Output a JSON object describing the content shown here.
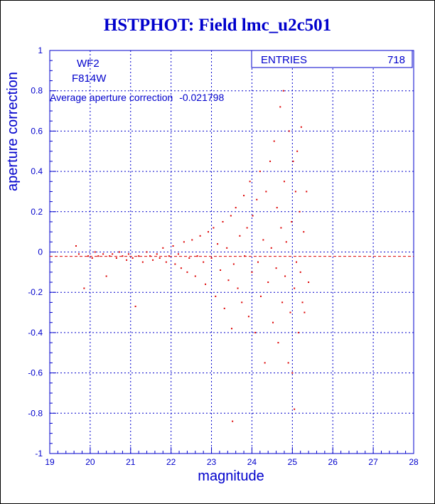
{
  "colors": {
    "axis": "#0000cc",
    "grid": "#0000cc",
    "points": "#dd0000",
    "mean_line": "#dd0000",
    "title": "#0000cc",
    "text": "#0000cc"
  },
  "stats_box": {
    "label": "ENTRIES",
    "value": "718"
  },
  "info_labels": {
    "camera": "WF2",
    "filter": "F814W",
    "average_label": "Average aperture correction",
    "average_value": "-0.021798"
  },
  "chart_data": {
    "type": "scatter",
    "title": "HSTPHOT: Field lmc_u2c501",
    "xlabel": "magnitude",
    "ylabel": "aperture correction",
    "xlim": [
      19,
      28
    ],
    "ylim": [
      -1,
      1
    ],
    "x_ticks": [
      19,
      20,
      21,
      22,
      23,
      24,
      25,
      26,
      27,
      28
    ],
    "y_ticks": [
      -1,
      -0.8,
      -0.6,
      -0.4,
      -0.2,
      0,
      0.2,
      0.4,
      0.6,
      0.8,
      1
    ],
    "grid": true,
    "reference_line_y": -0.021798,
    "series": [
      {
        "points": [
          [
            19.65,
            0.03
          ],
          [
            19.72,
            -0.01
          ],
          [
            19.85,
            -0.18
          ],
          [
            19.95,
            -0.02
          ],
          [
            20.05,
            -0.03
          ],
          [
            20.12,
            0.0
          ],
          [
            20.2,
            -0.02
          ],
          [
            20.32,
            -0.01
          ],
          [
            20.4,
            -0.12
          ],
          [
            20.48,
            -0.02
          ],
          [
            20.55,
            -0.01
          ],
          [
            20.65,
            -0.03
          ],
          [
            20.72,
            0.0
          ],
          [
            20.8,
            -0.02
          ],
          [
            20.9,
            -0.04
          ],
          [
            20.95,
            -0.01
          ],
          [
            21.05,
            -0.03
          ],
          [
            21.12,
            -0.27
          ],
          [
            21.2,
            -0.02
          ],
          [
            21.3,
            -0.05
          ],
          [
            21.4,
            0.0
          ],
          [
            21.48,
            -0.02
          ],
          [
            21.55,
            -0.04
          ],
          [
            21.65,
            -0.01
          ],
          [
            21.72,
            -0.03
          ],
          [
            21.8,
            0.02
          ],
          [
            21.88,
            -0.05
          ],
          [
            21.95,
            -0.02
          ],
          [
            22.05,
            0.03
          ],
          [
            22.1,
            -0.06
          ],
          [
            22.18,
            -0.01
          ],
          [
            22.25,
            -0.08
          ],
          [
            22.32,
            0.05
          ],
          [
            22.4,
            -0.1
          ],
          [
            22.45,
            -0.03
          ],
          [
            22.52,
            0.06
          ],
          [
            22.6,
            -0.12
          ],
          [
            22.65,
            -0.02
          ],
          [
            22.72,
            0.08
          ],
          [
            22.8,
            -0.05
          ],
          [
            22.85,
            -0.16
          ],
          [
            22.92,
            0.1
          ],
          [
            23.0,
            -0.03
          ],
          [
            23.05,
            0.12
          ],
          [
            23.1,
            -0.22
          ],
          [
            23.15,
            0.04
          ],
          [
            23.22,
            -0.09
          ],
          [
            23.28,
            0.15
          ],
          [
            23.32,
            -0.28
          ],
          [
            23.38,
            0.02
          ],
          [
            23.42,
            -0.14
          ],
          [
            23.48,
            0.18
          ],
          [
            23.5,
            -0.38
          ],
          [
            23.52,
            -0.84
          ],
          [
            23.55,
            -0.06
          ],
          [
            23.6,
            0.22
          ],
          [
            23.65,
            -0.18
          ],
          [
            23.7,
            0.08
          ],
          [
            23.75,
            -0.25
          ],
          [
            23.8,
            0.28
          ],
          [
            23.82,
            -0.02
          ],
          [
            23.88,
            0.12
          ],
          [
            23.92,
            -0.32
          ],
          [
            23.95,
            0.35
          ],
          [
            24.0,
            -0.1
          ],
          [
            24.02,
            0.18
          ],
          [
            24.08,
            -0.4
          ],
          [
            24.12,
            0.26
          ],
          [
            24.15,
            -0.05
          ],
          [
            24.2,
            0.4
          ],
          [
            24.22,
            -0.22
          ],
          [
            24.28,
            0.06
          ],
          [
            24.32,
            -0.55
          ],
          [
            24.35,
            0.3
          ],
          [
            24.4,
            -0.15
          ],
          [
            24.45,
            0.45
          ],
          [
            24.48,
            0.02
          ],
          [
            24.52,
            -0.35
          ],
          [
            24.55,
            0.55
          ],
          [
            24.6,
            -0.08
          ],
          [
            24.62,
            0.22
          ],
          [
            24.65,
            -0.45
          ],
          [
            24.7,
            0.72
          ],
          [
            24.72,
            0.12
          ],
          [
            24.75,
            -0.25
          ],
          [
            24.78,
            0.8
          ],
          [
            24.8,
            0.35
          ],
          [
            24.82,
            -0.12
          ],
          [
            24.85,
            0.05
          ],
          [
            24.9,
            -0.55
          ],
          [
            24.92,
            0.6
          ],
          [
            24.95,
            -0.3
          ],
          [
            24.98,
            0.15
          ],
          [
            25.0,
            -0.6
          ],
          [
            25.02,
            0.45
          ],
          [
            25.05,
            -0.78
          ],
          [
            25.05,
            -0.18
          ],
          [
            25.08,
            0.3
          ],
          [
            25.1,
            -0.05
          ],
          [
            25.12,
            0.5
          ],
          [
            25.15,
            -0.4
          ],
          [
            25.18,
            0.2
          ],
          [
            25.2,
            -0.1
          ],
          [
            25.22,
            0.62
          ],
          [
            25.25,
            -0.25
          ],
          [
            25.28,
            0.1
          ],
          [
            25.3,
            -0.3
          ],
          [
            25.35,
            0.3
          ],
          [
            25.4,
            -0.15
          ]
        ]
      }
    ]
  }
}
